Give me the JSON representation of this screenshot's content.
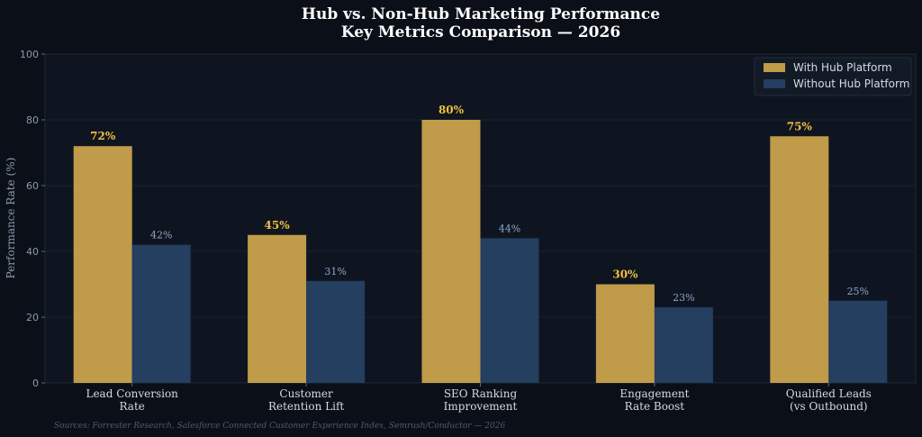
{
  "chart_data": {
    "type": "bar",
    "title": "Hub vs. Non-Hub Marketing Performance",
    "subtitle": "Key Metrics Comparison — 2026",
    "ylabel": "Performance Rate (%)",
    "xlabel": "",
    "ylim": [
      0,
      100
    ],
    "yticks": [
      0,
      20,
      40,
      60,
      80,
      100
    ],
    "categories": [
      [
        "Lead Conversion",
        "Rate"
      ],
      [
        "Customer",
        "Retention Lift"
      ],
      [
        "SEO Ranking",
        "Improvement"
      ],
      [
        "Engagement",
        "Rate Boost"
      ],
      [
        "Qualified Leads",
        "(vs Outbound)"
      ]
    ],
    "series": [
      {
        "name": "With Hub Platform",
        "values": [
          72,
          45,
          80,
          30,
          75
        ],
        "labels": [
          "72%",
          "45%",
          "80%",
          "30%",
          "75%"
        ],
        "color": "#bf9b4a",
        "label_color": "#f0c040"
      },
      {
        "name": "Without Hub Platform",
        "values": [
          42,
          31,
          44,
          23,
          25
        ],
        "labels": [
          "42%",
          "31%",
          "44%",
          "23%",
          "25%"
        ],
        "color": "#243f60",
        "label_color": "#8aa7c8"
      }
    ],
    "grid": true,
    "legend_position": "top-right",
    "source": "Sources: Forrester Research, Salesforce Connected Customer Experience Index, Semrush/Conductor — 2026"
  }
}
